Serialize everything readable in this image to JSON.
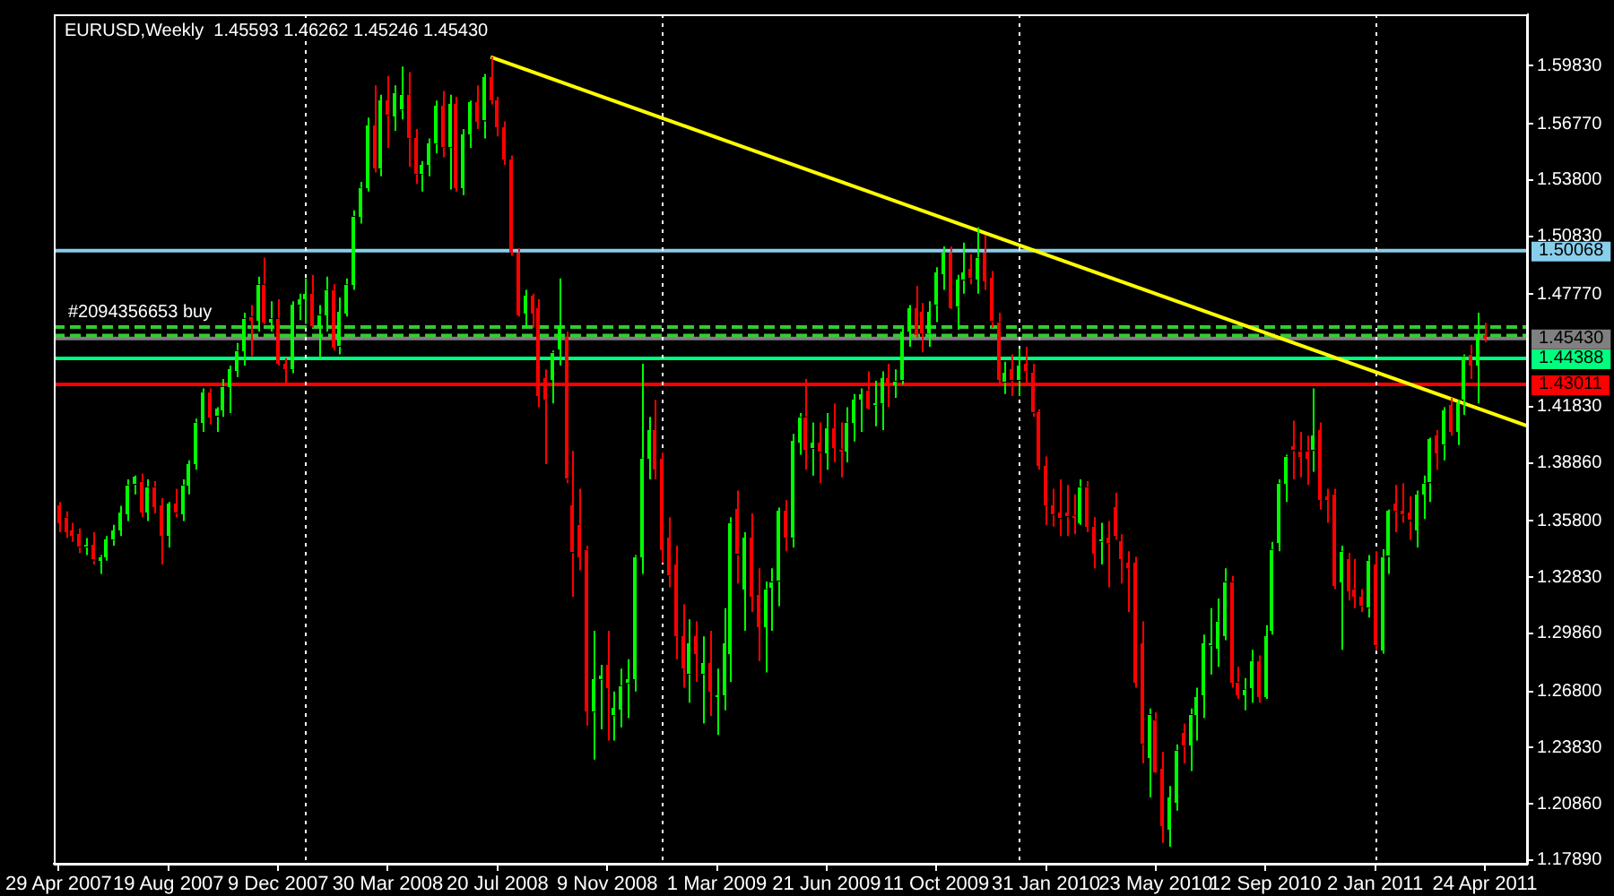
{
  "chart_data": {
    "type": "candlestick",
    "title": "EURUSD,Weekly  1.45593 1.46262 1.45246 1.45430",
    "xlim": [
      "2007-04-24",
      "2011-06-07"
    ],
    "xticks": [
      {
        "value": "2007-04-29",
        "label": "29 Apr 2007"
      },
      {
        "value": "2007-08-19",
        "label": "19 Aug 2007"
      },
      {
        "value": "2007-12-09",
        "label": "9 Dec 2007"
      },
      {
        "value": "2008-03-30",
        "label": "30 Mar 2008"
      },
      {
        "value": "2008-07-20",
        "label": "20 Jul 2008"
      },
      {
        "value": "2008-11-09",
        "label": "9 Nov 2008"
      },
      {
        "value": "2009-03-01",
        "label": "1 Mar 2009"
      },
      {
        "value": "2009-06-21",
        "label": "21 Jun 2009"
      },
      {
        "value": "2009-10-11",
        "label": "11 Oct 2009"
      },
      {
        "value": "2010-01-31",
        "label": "31 Jan 2010"
      },
      {
        "value": "2010-05-23",
        "label": "23 May 2010"
      },
      {
        "value": "2010-09-12",
        "label": "12 Sep 2010"
      },
      {
        "value": "2011-01-02",
        "label": "2 Jan 2011"
      },
      {
        "value": "2011-04-24",
        "label": "24 Apr 2011"
      }
    ],
    "ylim": [
      1.177,
      1.6255
    ],
    "yticks": [
      {
        "value": 1.5983,
        "label": "1.59830"
      },
      {
        "value": 1.5677,
        "label": "1.56770"
      },
      {
        "value": 1.538,
        "label": "1.53800"
      },
      {
        "value": 1.5083,
        "label": "1.50830"
      },
      {
        "value": 1.4777,
        "label": "1.47770"
      },
      {
        "value": 1.4183,
        "label": "1.41830"
      },
      {
        "value": 1.3886,
        "label": "1.38860"
      },
      {
        "value": 1.358,
        "label": "1.35800"
      },
      {
        "value": 1.3283,
        "label": "1.32830"
      },
      {
        "value": 1.2986,
        "label": "1.29860"
      },
      {
        "value": 1.268,
        "label": "1.26800"
      },
      {
        "value": 1.2383,
        "label": "1.23830"
      },
      {
        "value": 1.2086,
        "label": "1.20860"
      },
      {
        "value": 1.1789,
        "label": "1.17890"
      }
    ],
    "ref_lines": [
      {
        "axis": "y",
        "value": 1.50068,
        "label": "1.50068",
        "color": "#87ceeb",
        "line_style": "solid"
      },
      {
        "axis": "y",
        "value": 1.44388,
        "label": "1.44388",
        "color": "#00ff7f",
        "line_style": "solid"
      },
      {
        "axis": "y",
        "value": 1.43011,
        "label": "1.43011",
        "color": "#ff0000",
        "line_style": "solid"
      },
      {
        "axis": "y",
        "value": 1.4543,
        "label": "1.45430",
        "color": "#808080",
        "line_style": "solid"
      },
      {
        "axis": "y",
        "value": 1.4604,
        "label": "#2094356653 buy",
        "color": "#32cd32",
        "line_style": "dashed"
      },
      {
        "axis": "y",
        "value": 1.4559,
        "color": "#32cd32",
        "line_style": "dashed"
      },
      {
        "axis": "x",
        "value": "2008-01-06",
        "color": "#ffffff",
        "line_style": "dotted"
      },
      {
        "axis": "x",
        "value": "2009-01-04",
        "color": "#ffffff",
        "line_style": "dotted"
      },
      {
        "axis": "x",
        "value": "2010-01-03",
        "color": "#ffffff",
        "line_style": "dotted"
      },
      {
        "axis": "x",
        "value": "2011-01-02",
        "color": "#ffffff",
        "line_style": "dotted"
      }
    ],
    "grid": false,
    "legend": false,
    "series": [
      {
        "type": "candlestick",
        "x": [
          "2007-04-29",
          "2007-05-06",
          "2007-05-13",
          "2007-05-20",
          "2007-05-27",
          "2007-06-03",
          "2007-06-10",
          "2007-06-17",
          "2007-06-24",
          "2007-07-01",
          "2007-07-08",
          "2007-07-15",
          "2007-07-22",
          "2007-07-29",
          "2007-08-05",
          "2007-08-12",
          "2007-08-19",
          "2007-08-26",
          "2007-09-02",
          "2007-09-09",
          "2007-09-16",
          "2007-09-23",
          "2007-09-30",
          "2007-10-07",
          "2007-10-14",
          "2007-10-21",
          "2007-10-28",
          "2007-11-04",
          "2007-11-11",
          "2007-11-18",
          "2007-11-25",
          "2007-12-02",
          "2007-12-09",
          "2007-12-16",
          "2007-12-23",
          "2007-12-30",
          "2008-01-06",
          "2008-01-13",
          "2008-01-20",
          "2008-01-27",
          "2008-02-03",
          "2008-02-10",
          "2008-02-17",
          "2008-02-24",
          "2008-03-02",
          "2008-03-09",
          "2008-03-16",
          "2008-03-23",
          "2008-03-30",
          "2008-04-06",
          "2008-04-13",
          "2008-04-20",
          "2008-04-27",
          "2008-05-04",
          "2008-05-11",
          "2008-05-18",
          "2008-05-25",
          "2008-06-01",
          "2008-06-08",
          "2008-06-15",
          "2008-06-22",
          "2008-06-29",
          "2008-07-06",
          "2008-07-13",
          "2008-07-20",
          "2008-07-27",
          "2008-08-03",
          "2008-08-10",
          "2008-08-17",
          "2008-08-24",
          "2008-08-31",
          "2008-09-07",
          "2008-09-14",
          "2008-09-21",
          "2008-09-28",
          "2008-10-05",
          "2008-10-12",
          "2008-10-19",
          "2008-10-26",
          "2008-11-02",
          "2008-11-09",
          "2008-11-16",
          "2008-11-23",
          "2008-11-30",
          "2008-12-07",
          "2008-12-14",
          "2008-12-21",
          "2008-12-28",
          "2009-01-04",
          "2009-01-11",
          "2009-01-18",
          "2009-01-25",
          "2009-02-01",
          "2009-02-08",
          "2009-02-15",
          "2009-02-22",
          "2009-03-01",
          "2009-03-08",
          "2009-03-15",
          "2009-03-22",
          "2009-03-29",
          "2009-04-05",
          "2009-04-12",
          "2009-04-19",
          "2009-04-26",
          "2009-05-03",
          "2009-05-10",
          "2009-05-17",
          "2009-05-24",
          "2009-05-31",
          "2009-06-07",
          "2009-06-14",
          "2009-06-21",
          "2009-06-28",
          "2009-07-05",
          "2009-07-12",
          "2009-07-19",
          "2009-07-26",
          "2009-08-02",
          "2009-08-09",
          "2009-08-16",
          "2009-08-23",
          "2009-08-30",
          "2009-09-06",
          "2009-09-13",
          "2009-09-20",
          "2009-09-27",
          "2009-10-04",
          "2009-10-11",
          "2009-10-18",
          "2009-10-25",
          "2009-11-01",
          "2009-11-08",
          "2009-11-15",
          "2009-11-22",
          "2009-11-29",
          "2009-12-06",
          "2009-12-13",
          "2009-12-20",
          "2009-12-27",
          "2010-01-03",
          "2010-01-10",
          "2010-01-17",
          "2010-01-24",
          "2010-01-31",
          "2010-02-07",
          "2010-02-14",
          "2010-02-21",
          "2010-02-28",
          "2010-03-07",
          "2010-03-14",
          "2010-03-21",
          "2010-03-28",
          "2010-04-04",
          "2010-04-11",
          "2010-04-18",
          "2010-04-25",
          "2010-05-02",
          "2010-05-09",
          "2010-05-16",
          "2010-05-23",
          "2010-05-30",
          "2010-06-06",
          "2010-06-13",
          "2010-06-20",
          "2010-06-27",
          "2010-07-04",
          "2010-07-11",
          "2010-07-18",
          "2010-07-25",
          "2010-08-01",
          "2010-08-08",
          "2010-08-15",
          "2010-08-22",
          "2010-08-29",
          "2010-09-05",
          "2010-09-12",
          "2010-09-19",
          "2010-09-26",
          "2010-10-03",
          "2010-10-10",
          "2010-10-17",
          "2010-10-24",
          "2010-10-31",
          "2010-11-07",
          "2010-11-14",
          "2010-11-21",
          "2010-11-28",
          "2010-12-05",
          "2010-12-12",
          "2010-12-19",
          "2010-12-26",
          "2011-01-02",
          "2011-01-09",
          "2011-01-16",
          "2011-01-23",
          "2011-01-30",
          "2011-02-06",
          "2011-02-13",
          "2011-02-20",
          "2011-02-27",
          "2011-03-06",
          "2011-03-13",
          "2011-03-20",
          "2011-03-27",
          "2011-04-03",
          "2011-04-10",
          "2011-04-17",
          "2011-04-24"
        ],
        "ohlc": [
          [
            1.366,
            1.368,
            1.352,
            1.357
          ],
          [
            1.36,
            1.363,
            1.349,
            1.352
          ],
          [
            1.353,
            1.357,
            1.347,
            1.35
          ],
          [
            1.351,
            1.354,
            1.341,
            1.344
          ],
          [
            1.344,
            1.349,
            1.34,
            1.345
          ],
          [
            1.345,
            1.352,
            1.335,
            1.337
          ],
          [
            1.337,
            1.34,
            1.33,
            1.339
          ],
          [
            1.339,
            1.35,
            1.337,
            1.348
          ],
          [
            1.348,
            1.356,
            1.345,
            1.353
          ],
          [
            1.353,
            1.366,
            1.35,
            1.362
          ],
          [
            1.362,
            1.38,
            1.358,
            1.377
          ],
          [
            1.377,
            1.382,
            1.372,
            1.381
          ],
          [
            1.379,
            1.383,
            1.36,
            1.363
          ],
          [
            1.363,
            1.38,
            1.358,
            1.376
          ],
          [
            1.376,
            1.379,
            1.362,
            1.366
          ],
          [
            1.366,
            1.37,
            1.335,
            1.35
          ],
          [
            1.35,
            1.368,
            1.344,
            1.367
          ],
          [
            1.367,
            1.375,
            1.36,
            1.362
          ],
          [
            1.362,
            1.38,
            1.358,
            1.377
          ],
          [
            1.377,
            1.39,
            1.372,
            1.388
          ],
          [
            1.388,
            1.412,
            1.385,
            1.41
          ],
          [
            1.41,
            1.428,
            1.405,
            1.426
          ],
          [
            1.426,
            1.428,
            1.409,
            1.413
          ],
          [
            1.413,
            1.418,
            1.405,
            1.417
          ],
          [
            1.417,
            1.433,
            1.413,
            1.429
          ],
          [
            1.429,
            1.44,
            1.415,
            1.438
          ],
          [
            1.438,
            1.452,
            1.434,
            1.448
          ],
          [
            1.448,
            1.468,
            1.44,
            1.465
          ],
          [
            1.466,
            1.472,
            1.445,
            1.464
          ],
          [
            1.464,
            1.487,
            1.458,
            1.483
          ],
          [
            1.483,
            1.497,
            1.462,
            1.463
          ],
          [
            1.463,
            1.474,
            1.458,
            1.465
          ],
          [
            1.465,
            1.475,
            1.44,
            1.441
          ],
          [
            1.441,
            1.444,
            1.43,
            1.438
          ],
          [
            1.438,
            1.474,
            1.436,
            1.472
          ],
          [
            1.472,
            1.478,
            1.464,
            1.475
          ],
          [
            1.475,
            1.486,
            1.462,
            1.478
          ],
          [
            1.478,
            1.488,
            1.46,
            1.461
          ],
          [
            1.461,
            1.472,
            1.444,
            1.467
          ],
          [
            1.467,
            1.487,
            1.458,
            1.48
          ],
          [
            1.48,
            1.483,
            1.448,
            1.45
          ],
          [
            1.45,
            1.476,
            1.446,
            1.468
          ],
          [
            1.468,
            1.486,
            1.466,
            1.483
          ],
          [
            1.483,
            1.522,
            1.48,
            1.519
          ],
          [
            1.519,
            1.537,
            1.515,
            1.534
          ],
          [
            1.534,
            1.571,
            1.532,
            1.567
          ],
          [
            1.567,
            1.588,
            1.542,
            1.544
          ],
          [
            1.544,
            1.583,
            1.54,
            1.58
          ],
          [
            1.58,
            1.593,
            1.555,
            1.572
          ],
          [
            1.572,
            1.588,
            1.564,
            1.584
          ],
          [
            1.575,
            1.598,
            1.57,
            1.583
          ],
          [
            1.583,
            1.595,
            1.545,
            1.56
          ],
          [
            1.56,
            1.565,
            1.536,
            1.541
          ],
          [
            1.541,
            1.548,
            1.532,
            1.546
          ],
          [
            1.546,
            1.56,
            1.54,
            1.557
          ],
          [
            1.557,
            1.58,
            1.552,
            1.577
          ],
          [
            1.577,
            1.585,
            1.55,
            1.555
          ],
          [
            1.555,
            1.583,
            1.533,
            1.578
          ],
          [
            1.578,
            1.582,
            1.532,
            1.534
          ],
          [
            1.534,
            1.565,
            1.53,
            1.562
          ],
          [
            1.562,
            1.58,
            1.555,
            1.579
          ],
          [
            1.579,
            1.588,
            1.565,
            1.569
          ],
          [
            1.569,
            1.594,
            1.56,
            1.592
          ],
          [
            1.592,
            1.603,
            1.578,
            1.58
          ],
          [
            1.58,
            1.582,
            1.561,
            1.566
          ],
          [
            1.566,
            1.569,
            1.546,
            1.549
          ],
          [
            1.549,
            1.551,
            1.498,
            1.5
          ],
          [
            1.5,
            1.502,
            1.466,
            1.467
          ],
          [
            1.468,
            1.48,
            1.46,
            1.477
          ],
          [
            1.477,
            1.478,
            1.46,
            1.468
          ],
          [
            1.47,
            1.475,
            1.418,
            1.424
          ],
          [
            1.433,
            1.438,
            1.388,
            1.422
          ],
          [
            1.433,
            1.448,
            1.42,
            1.447
          ],
          [
            1.449,
            1.486,
            1.44,
            1.461
          ],
          [
            1.455,
            1.458,
            1.378,
            1.38
          ],
          [
            1.366,
            1.395,
            1.318,
            1.341
          ],
          [
            1.356,
            1.375,
            1.332,
            1.339
          ],
          [
            1.343,
            1.345,
            1.25,
            1.258
          ],
          [
            1.257,
            1.3,
            1.232,
            1.274
          ],
          [
            1.274,
            1.282,
            1.248,
            1.276
          ],
          [
            1.282,
            1.3,
            1.242,
            1.27
          ],
          [
            1.255,
            1.268,
            1.242,
            1.259
          ],
          [
            1.259,
            1.28,
            1.249,
            1.271
          ],
          [
            1.272,
            1.285,
            1.254,
            1.274
          ],
          [
            1.275,
            1.34,
            1.268,
            1.339
          ],
          [
            1.339,
            1.441,
            1.33,
            1.391
          ],
          [
            1.391,
            1.413,
            1.38,
            1.406
          ],
          [
            1.406,
            1.422,
            1.38,
            1.385
          ],
          [
            1.391,
            1.394,
            1.336,
            1.343
          ],
          [
            1.349,
            1.36,
            1.323,
            1.329
          ],
          [
            1.335,
            1.345,
            1.285,
            1.297
          ],
          [
            1.297,
            1.314,
            1.27,
            1.28
          ],
          [
            1.277,
            1.306,
            1.262,
            1.293
          ],
          [
            1.297,
            1.305,
            1.273,
            1.288
          ],
          [
            1.277,
            1.297,
            1.251,
            1.283
          ],
          [
            1.283,
            1.3,
            1.255,
            1.268
          ],
          [
            1.265,
            1.28,
            1.245,
            1.266
          ],
          [
            1.266,
            1.312,
            1.258,
            1.293
          ],
          [
            1.288,
            1.36,
            1.273,
            1.357
          ],
          [
            1.364,
            1.374,
            1.325,
            1.34
          ],
          [
            1.322,
            1.352,
            1.3,
            1.349
          ],
          [
            1.349,
            1.362,
            1.31,
            1.318
          ],
          [
            1.319,
            1.333,
            1.284,
            1.302
          ],
          [
            1.302,
            1.326,
            1.278,
            1.322
          ],
          [
            1.323,
            1.333,
            1.3,
            1.326
          ],
          [
            1.326,
            1.365,
            1.313,
            1.363
          ],
          [
            1.363,
            1.369,
            1.342,
            1.349
          ],
          [
            1.349,
            1.404,
            1.344,
            1.4
          ],
          [
            1.4,
            1.415,
            1.393,
            1.413
          ],
          [
            1.413,
            1.433,
            1.385,
            1.396
          ],
          [
            1.396,
            1.41,
            1.382,
            1.399
          ],
          [
            1.399,
            1.41,
            1.378,
            1.394
          ],
          [
            1.394,
            1.415,
            1.385,
            1.407
          ],
          [
            1.407,
            1.42,
            1.389,
            1.397
          ],
          [
            1.396,
            1.41,
            1.381,
            1.395
          ],
          [
            1.395,
            1.418,
            1.389,
            1.41
          ],
          [
            1.41,
            1.425,
            1.4,
            1.422
          ],
          [
            1.422,
            1.428,
            1.405,
            1.425
          ],
          [
            1.427,
            1.437,
            1.417,
            1.418
          ],
          [
            1.419,
            1.432,
            1.408,
            1.42
          ],
          [
            1.42,
            1.437,
            1.406,
            1.433
          ],
          [
            1.433,
            1.441,
            1.418,
            1.43
          ],
          [
            1.43,
            1.438,
            1.423,
            1.432
          ],
          [
            1.432,
            1.46,
            1.43,
            1.458
          ],
          [
            1.458,
            1.472,
            1.45,
            1.47
          ],
          [
            1.47,
            1.482,
            1.455,
            1.456
          ],
          [
            1.468,
            1.473,
            1.447,
            1.457
          ],
          [
            1.457,
            1.474,
            1.45,
            1.468
          ],
          [
            1.472,
            1.492,
            1.463,
            1.489
          ],
          [
            1.489,
            1.503,
            1.48,
            1.5
          ],
          [
            1.5,
            1.503,
            1.47,
            1.471
          ],
          [
            1.471,
            1.488,
            1.459,
            1.485
          ],
          [
            1.485,
            1.505,
            1.478,
            1.489
          ],
          [
            1.491,
            1.499,
            1.483,
            1.486
          ],
          [
            1.486,
            1.513,
            1.478,
            1.497
          ],
          [
            1.5,
            1.509,
            1.48,
            1.485
          ],
          [
            1.486,
            1.49,
            1.46,
            1.463
          ],
          [
            1.463,
            1.468,
            1.43,
            1.433
          ],
          [
            1.431,
            1.442,
            1.425,
            1.436
          ],
          [
            1.438,
            1.446,
            1.424,
            1.432
          ],
          [
            1.432,
            1.449,
            1.424,
            1.44
          ],
          [
            1.441,
            1.45,
            1.43,
            1.437
          ],
          [
            1.436,
            1.441,
            1.413,
            1.415
          ],
          [
            1.415,
            1.417,
            1.385,
            1.387
          ],
          [
            1.387,
            1.392,
            1.356,
            1.366
          ],
          [
            1.366,
            1.375,
            1.355,
            1.361
          ],
          [
            1.362,
            1.38,
            1.35,
            1.359
          ],
          [
            1.362,
            1.377,
            1.35,
            1.36
          ],
          [
            1.361,
            1.372,
            1.351,
            1.36
          ],
          [
            1.357,
            1.38,
            1.356,
            1.376
          ],
          [
            1.376,
            1.379,
            1.352,
            1.355
          ],
          [
            1.355,
            1.36,
            1.333,
            1.341
          ],
          [
            1.347,
            1.357,
            1.335,
            1.348
          ],
          [
            1.349,
            1.358,
            1.323,
            1.346
          ],
          [
            1.365,
            1.373,
            1.348,
            1.35
          ],
          [
            1.347,
            1.351,
            1.325,
            1.338
          ],
          [
            1.336,
            1.342,
            1.31,
            1.333
          ],
          [
            1.336,
            1.339,
            1.27,
            1.273
          ],
          [
            1.293,
            1.305,
            1.23,
            1.24
          ],
          [
            1.233,
            1.259,
            1.212,
            1.256
          ],
          [
            1.253,
            1.257,
            1.225,
            1.226
          ],
          [
            1.227,
            1.236,
            1.188,
            1.197
          ],
          [
            1.195,
            1.218,
            1.186,
            1.212
          ],
          [
            1.21,
            1.24,
            1.205,
            1.237
          ],
          [
            1.246,
            1.251,
            1.23,
            1.239
          ],
          [
            1.24,
            1.259,
            1.226,
            1.256
          ],
          [
            1.256,
            1.27,
            1.242,
            1.265
          ],
          [
            1.266,
            1.298,
            1.254,
            1.293
          ],
          [
            1.292,
            1.312,
            1.277,
            1.293
          ],
          [
            1.291,
            1.317,
            1.281,
            1.305
          ],
          [
            1.298,
            1.333,
            1.295,
            1.326
          ],
          [
            1.326,
            1.329,
            1.27,
            1.273
          ],
          [
            1.273,
            1.281,
            1.264,
            1.266
          ],
          [
            1.266,
            1.275,
            1.258,
            1.269
          ],
          [
            1.27,
            1.29,
            1.262,
            1.284
          ],
          [
            1.284,
            1.287,
            1.262,
            1.265
          ],
          [
            1.265,
            1.303,
            1.264,
            1.297
          ],
          [
            1.3,
            1.347,
            1.298,
            1.343
          ],
          [
            1.347,
            1.38,
            1.342,
            1.378
          ],
          [
            1.378,
            1.393,
            1.368,
            1.392
          ],
          [
            1.397,
            1.411,
            1.38,
            1.395
          ],
          [
            1.395,
            1.405,
            1.381,
            1.392
          ],
          [
            1.395,
            1.403,
            1.377,
            1.391
          ],
          [
            1.395,
            1.428,
            1.384,
            1.403
          ],
          [
            1.406,
            1.41,
            1.364,
            1.369
          ],
          [
            1.371,
            1.375,
            1.357,
            1.369
          ],
          [
            1.372,
            1.375,
            1.322,
            1.324
          ],
          [
            1.326,
            1.345,
            1.29,
            1.342
          ],
          [
            1.338,
            1.341,
            1.316,
            1.321
          ],
          [
            1.322,
            1.338,
            1.312,
            1.318
          ],
          [
            1.318,
            1.322,
            1.31,
            1.313
          ],
          [
            1.312,
            1.34,
            1.307,
            1.337
          ],
          [
            1.335,
            1.342,
            1.29,
            1.292
          ],
          [
            1.29,
            1.343,
            1.288,
            1.339
          ],
          [
            1.339,
            1.364,
            1.33,
            1.363
          ],
          [
            1.367,
            1.377,
            1.352,
            1.363
          ],
          [
            1.363,
            1.378,
            1.357,
            1.361
          ],
          [
            1.362,
            1.371,
            1.348,
            1.358
          ],
          [
            1.353,
            1.374,
            1.344,
            1.372
          ],
          [
            1.372,
            1.382,
            1.359,
            1.378
          ],
          [
            1.378,
            1.402,
            1.368,
            1.401
          ],
          [
            1.403,
            1.406,
            1.385,
            1.394
          ],
          [
            1.398,
            1.418,
            1.39,
            1.416
          ],
          [
            1.419,
            1.423,
            1.403,
            1.405
          ],
          [
            1.405,
            1.422,
            1.398,
            1.42
          ],
          [
            1.422,
            1.446,
            1.414,
            1.445
          ],
          [
            1.446,
            1.451,
            1.433,
            1.44
          ],
          [
            1.44,
            1.468,
            1.42,
            1.455
          ],
          [
            1.45593,
            1.46262,
            1.45246,
            1.4543
          ]
        ],
        "colors": [
          "#ff0000",
          "#ff0000",
          "#ff0000",
          "#ff0000",
          "#00ff00",
          "#ff0000",
          "#00ff00",
          "#00ff00",
          "#00ff00",
          "#00ff00",
          "#00ff00",
          "#00ff00",
          "#ff0000",
          "#00ff00",
          "#ff0000",
          "#ff0000",
          "#00ff00",
          "#ff0000",
          "#00ff00",
          "#00ff00",
          "#00ff00",
          "#00ff00",
          "#ff0000",
          "#00ff00",
          "#00ff00",
          "#00ff00",
          "#00ff00",
          "#00ff00",
          "#ff0000",
          "#00ff00",
          "#ff0000",
          "#00ff00",
          "#ff0000",
          "#ff0000",
          "#00ff00",
          "#00ff00",
          "#00ff00",
          "#ff0000",
          "#00ff00",
          "#00ff00",
          "#ff0000",
          "#00ff00",
          "#00ff00",
          "#00ff00",
          "#00ff00",
          "#00ff00",
          "#ff0000",
          "#00ff00",
          "#ff0000",
          "#00ff00",
          "#00ff00",
          "#ff0000",
          "#ff0000",
          "#00ff00",
          "#00ff00",
          "#00ff00",
          "#ff0000",
          "#00ff00",
          "#ff0000",
          "#00ff00",
          "#00ff00",
          "#ff0000",
          "#00ff00",
          "#ff0000",
          "#ff0000",
          "#ff0000",
          "#ff0000",
          "#ff0000",
          "#00ff00",
          "#ff0000",
          "#ff0000",
          "#ff0000",
          "#00ff00",
          "#00ff00",
          "#ff0000",
          "#ff0000",
          "#ff0000",
          "#ff0000",
          "#00ff00",
          "#00ff00",
          "#ff0000",
          "#00ff00",
          "#00ff00",
          "#00ff00",
          "#00ff00",
          "#00ff00",
          "#00ff00",
          "#ff0000",
          "#ff0000",
          "#ff0000",
          "#ff0000",
          "#ff0000",
          "#00ff00",
          "#ff0000",
          "#00ff00",
          "#ff0000",
          "#00ff00",
          "#00ff00",
          "#00ff00",
          "#ff0000",
          "#00ff00",
          "#ff0000",
          "#ff0000",
          "#00ff00",
          "#00ff00",
          "#00ff00",
          "#ff0000",
          "#00ff00",
          "#00ff00",
          "#ff0000",
          "#00ff00",
          "#ff0000",
          "#00ff00",
          "#ff0000",
          "#ff0000",
          "#00ff00",
          "#00ff00",
          "#00ff00",
          "#ff0000",
          "#00ff00",
          "#00ff00",
          "#ff0000",
          "#00ff00",
          "#00ff00",
          "#00ff00",
          "#ff0000",
          "#ff0000",
          "#00ff00",
          "#00ff00",
          "#00ff00",
          "#ff0000",
          "#00ff00",
          "#00ff00",
          "#ff0000",
          "#00ff00",
          "#ff0000",
          "#ff0000",
          "#ff0000",
          "#00ff00",
          "#ff0000",
          "#00ff00",
          "#ff0000",
          "#ff0000",
          "#ff0000",
          "#ff0000",
          "#ff0000",
          "#ff0000",
          "#ff0000",
          "#ff0000",
          "#00ff00",
          "#ff0000",
          "#ff0000",
          "#00ff00",
          "#ff0000",
          "#ff0000",
          "#ff0000",
          "#ff0000",
          "#ff0000",
          "#ff0000",
          "#00ff00",
          "#ff0000",
          "#ff0000",
          "#00ff00",
          "#00ff00",
          "#ff0000",
          "#00ff00",
          "#00ff00",
          "#00ff00",
          "#00ff00",
          "#00ff00",
          "#00ff00",
          "#ff0000",
          "#ff0000",
          "#00ff00",
          "#00ff00",
          "#ff0000",
          "#00ff00",
          "#00ff00",
          "#00ff00",
          "#00ff00",
          "#ff0000",
          "#ff0000",
          "#ff0000",
          "#00ff00",
          "#ff0000",
          "#ff0000",
          "#ff0000",
          "#00ff00",
          "#ff0000",
          "#ff0000",
          "#ff0000",
          "#00ff00",
          "#ff0000",
          "#00ff00",
          "#00ff00",
          "#ff0000",
          "#ff0000",
          "#ff0000",
          "#00ff00",
          "#00ff00",
          "#00ff00",
          "#ff0000",
          "#00ff00",
          "#ff0000",
          "#00ff00",
          "#00ff00",
          "#ff0000",
          "#00ff00",
          "#ff0000"
        ]
      },
      {
        "type": "line",
        "color": "#ffff00",
        "x": [
          "2008-07-13",
          "2011-06-07"
        ],
        "values": [
          1.603,
          1.408
        ]
      }
    ]
  }
}
